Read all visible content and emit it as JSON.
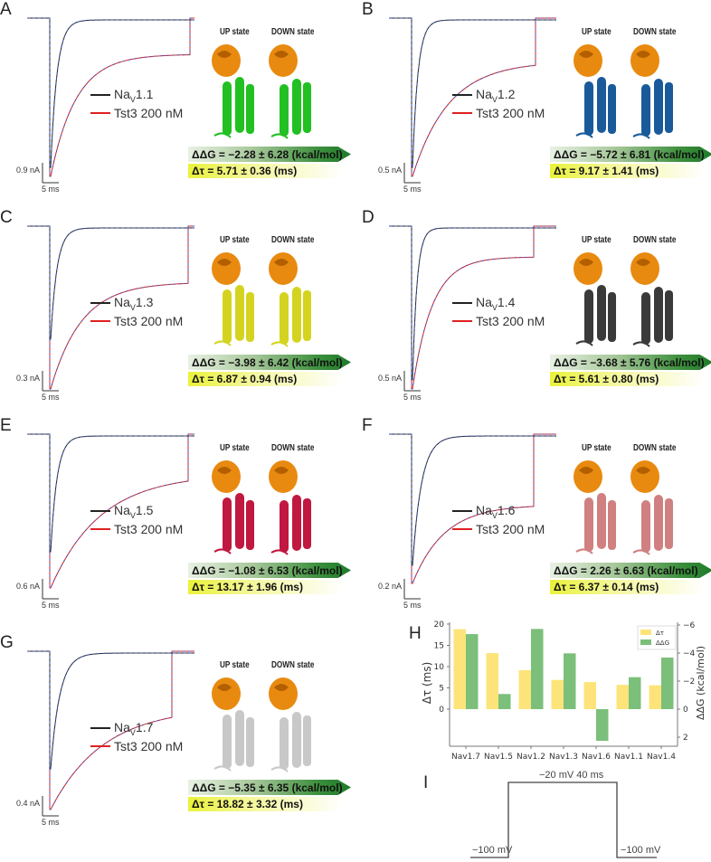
{
  "panels": [
    {
      "letter": "A",
      "channel_prefix": "Na",
      "channel_sub": "V",
      "channel_num": "1.1",
      "toxin": "Tst3 200 nM",
      "scale_current": "0.9 nA",
      "scale_time": "5 ms",
      "up_label": "UP state",
      "down_label": "DOWN state",
      "ddg": "ΔΔG = −2.28 ± 6.28 (kcal/mol)",
      "dtau": "Δτ = 5.71 ± 0.36 (ms)",
      "protein_color": "#22c022"
    },
    {
      "letter": "B",
      "channel_prefix": "Na",
      "channel_sub": "V",
      "channel_num": "1.2",
      "toxin": "Tst3 200 nM",
      "scale_current": "0.5 nA",
      "scale_time": "5 ms",
      "up_label": "UP state",
      "down_label": "DOWN state",
      "ddg": "ΔΔG = −5.72 ± 6.81 (kcal/mol)",
      "dtau": "Δτ = 9.17 ± 1.41 (ms)",
      "protein_color": "#1a5a9a"
    },
    {
      "letter": "C",
      "channel_prefix": "Na",
      "channel_sub": "V",
      "channel_num": "1.3",
      "toxin": "Tst3 200 nM",
      "scale_current": "0.3 nA",
      "scale_time": "5 ms",
      "up_label": "UP state",
      "down_label": "DOWN state",
      "ddg": "ΔΔG = −3.98 ± 6.42 (kcal/mol)",
      "dtau": "Δτ = 6.87 ± 0.94 (ms)",
      "protein_color": "#d4d420"
    },
    {
      "letter": "D",
      "channel_prefix": "Na",
      "channel_sub": "V",
      "channel_num": "1.4",
      "toxin": "Tst3 200 nM",
      "scale_current": "0.5 nA",
      "scale_time": "5 ms",
      "up_label": "UP state",
      "down_label": "DOWN state",
      "ddg": "ΔΔG = −3.68 ± 5.76 (kcal/mol)",
      "dtau": "Δτ = 5.61 ± 0.80 (ms)",
      "protein_color": "#3a3a3a"
    },
    {
      "letter": "E",
      "channel_prefix": "Na",
      "channel_sub": "V",
      "channel_num": "1.5",
      "toxin": "Tst3 200 nM",
      "scale_current": "0.6 nA",
      "scale_time": "5 ms",
      "up_label": "UP state",
      "down_label": "DOWN state",
      "ddg": "ΔΔG = −1.08 ± 6.53 (kcal/mol)",
      "dtau": "Δτ = 13.17 ± 1.96 (ms)",
      "protein_color": "#c01840"
    },
    {
      "letter": "F",
      "channel_prefix": "Na",
      "channel_sub": "V",
      "channel_num": "1.6",
      "toxin": "Tst3 200 nM",
      "scale_current": "0.2 nA",
      "scale_time": "5 ms",
      "up_label": "UP state",
      "down_label": "DOWN state",
      "ddg": "ΔΔG = 2.26 ± 6.63 (kcal/mol)",
      "dtau": "Δτ = 6.37 ± 0.14 (ms)",
      "protein_color": "#d08080"
    },
    {
      "letter": "G",
      "channel_prefix": "Na",
      "channel_sub": "V",
      "channel_num": "1.7",
      "toxin": "Tst3 200 nM",
      "scale_current": "0.4 nA",
      "scale_time": "5 ms",
      "up_label": "UP state",
      "down_label": "DOWN state",
      "ddg": "ΔΔG = −5.35 ± 6.35 (kcal/mol)",
      "dtau": "Δτ = 18.82 ± 3.32 (ms)",
      "protein_color": "#c8c8c8"
    }
  ],
  "colors": {
    "control_trace": "#222222",
    "toxin_trace": "#e02020",
    "fit_trace": "#3050c0",
    "toxin_orange": "#e88a10",
    "dtau_bar": "#fde47a",
    "ddg_bar": "#7bbf7b"
  },
  "panel_H": {
    "letter": "H"
  },
  "panel_I": {
    "letter": "I",
    "step_label": "−20 mV 40 ms",
    "hold_left": "−100 mV",
    "hold_right": "−100 mV"
  },
  "chart_data": {
    "type": "bar",
    "title": "",
    "categories": [
      "Nav1.7",
      "Nav1.5",
      "Nav1.2",
      "Nav1.3",
      "Nav1.6",
      "Nav1.1",
      "Nav1.4"
    ],
    "series": [
      {
        "name": "Δτ",
        "axis": "left",
        "color": "#fde47a",
        "values": [
          18.82,
          13.17,
          9.17,
          6.87,
          6.37,
          5.71,
          5.61
        ]
      },
      {
        "name": "ΔΔG",
        "axis": "right",
        "color": "#7bbf7b",
        "values": [
          -5.35,
          -1.08,
          -5.72,
          -3.98,
          2.26,
          -2.28,
          -3.68
        ]
      }
    ],
    "xlabel": "",
    "ylabel": "Δτ (ms)",
    "ylabel_right": "ΔΔG (kcal/mol)",
    "ylim": [
      -9,
      20
    ],
    "yticks": [
      0,
      5,
      10,
      15,
      20
    ],
    "ylim_right": [
      2.7,
      -6
    ],
    "yticks_right": [
      2,
      0,
      -2,
      -4,
      -6
    ],
    "legend_position": "upper right",
    "grid": false
  }
}
